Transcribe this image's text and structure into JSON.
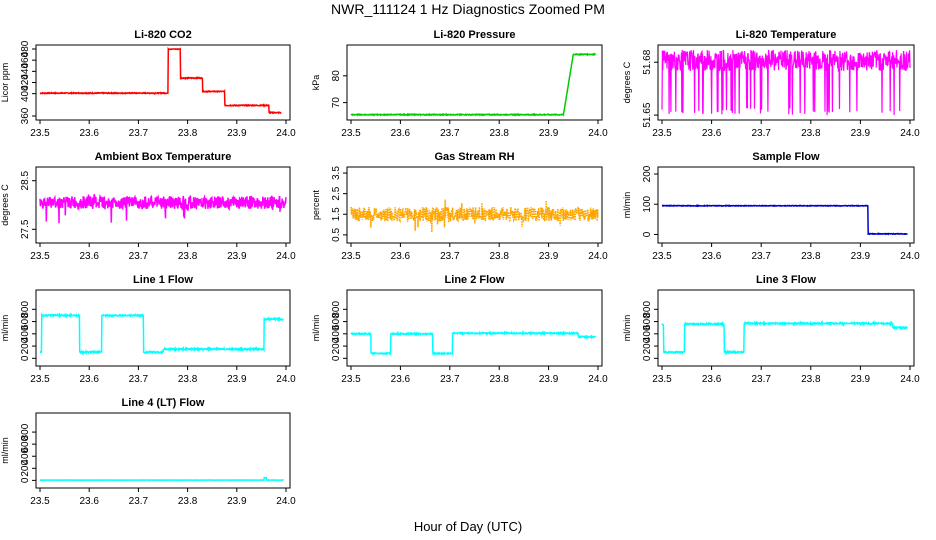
{
  "title": "NWR_111124  1 Hz Diagnostics Zoomed PM",
  "xlabel": "Hour of Day (UTC)",
  "chart_data": [
    {
      "type": "line",
      "title": "Li-820 CO2",
      "ylabel": "Licor ppm",
      "color": "#ff0000",
      "xlim": [
        23.5,
        24.0
      ],
      "ylim": [
        360,
        480
      ],
      "xticks": [
        23.5,
        23.6,
        23.7,
        23.8,
        23.9,
        24.0
      ],
      "yticks": [
        360,
        400,
        420,
        440,
        460,
        480
      ],
      "noise": 0.8,
      "segments": [
        [
          23.5,
          23.76,
          401
        ],
        [
          23.76,
          23.785,
          480
        ],
        [
          23.785,
          23.83,
          428
        ],
        [
          23.83,
          23.875,
          404
        ],
        [
          23.875,
          23.965,
          379
        ],
        [
          23.965,
          23.99,
          366
        ]
      ]
    },
    {
      "type": "line",
      "title": "Li-820 Pressure",
      "ylabel": "kPa",
      "color": "#00cc00",
      "xlim": [
        23.5,
        24.0
      ],
      "ylim": [
        65,
        90
      ],
      "xticks": [
        23.5,
        23.6,
        23.7,
        23.8,
        23.9,
        24.0
      ],
      "yticks": [
        70,
        80
      ],
      "noise": 0.15,
      "segments": [
        [
          23.5,
          23.93,
          65.5
        ],
        [
          23.93,
          23.95,
          "ramp",
          65.5,
          88
        ],
        [
          23.95,
          23.995,
          88
        ]
      ]
    },
    {
      "type": "line",
      "title": "Li-820 Temperature",
      "ylabel": "degrees C",
      "color": "#ff00ff",
      "xlim": [
        23.5,
        24.0
      ],
      "ylim": [
        51.6495,
        51.6875
      ],
      "xticks": [
        23.5,
        23.6,
        23.7,
        23.8,
        23.9,
        24.0
      ],
      "yticks": [
        51.65,
        51.68
      ],
      "noise": 0,
      "segments": [
        [
          23.5,
          24.0,
          51.68
        ]
      ],
      "style": "band",
      "band": [
        51.675,
        51.687
      ],
      "spike_to": 51.65
    },
    {
      "type": "line",
      "title": "Ambient Box Temperature",
      "ylabel": "degrees C",
      "color": "#ff00ff",
      "xlim": [
        23.5,
        24.0
      ],
      "ylim": [
        27.3,
        28.7
      ],
      "xticks": [
        23.5,
        23.6,
        23.7,
        23.8,
        23.9,
        24.0
      ],
      "yticks": [
        27.5,
        28.5
      ],
      "noise": 0.13,
      "segments": [
        [
          23.5,
          24.0,
          28.05
        ]
      ],
      "spikes": true
    },
    {
      "type": "line",
      "title": "Gas Stream RH",
      "ylabel": "percent",
      "color": "#ffa500",
      "xlim": [
        23.5,
        24.0
      ],
      "ylim": [
        0.3,
        3.6
      ],
      "xticks": [
        23.5,
        23.6,
        23.7,
        23.8,
        23.9,
        24.0
      ],
      "yticks": [
        0.5,
        1.5,
        2.5,
        3.5
      ],
      "noise": 0.35,
      "segments": [
        [
          23.5,
          24.0,
          1.5
        ]
      ],
      "spikes": true,
      "dashed": true
    },
    {
      "type": "line",
      "title": "Sample Flow",
      "ylabel": "ml/min",
      "color": "#0000cc",
      "xlim": [
        23.5,
        24.0
      ],
      "ylim": [
        -15,
        210
      ],
      "xticks": [
        23.5,
        23.6,
        23.7,
        23.8,
        23.9,
        24.0
      ],
      "yticks": [
        0,
        100,
        200
      ],
      "noise": 1,
      "segments": [
        [
          23.5,
          23.915,
          95
        ],
        [
          23.915,
          23.995,
          2
        ]
      ]
    },
    {
      "type": "line",
      "title": "Line 1 Flow",
      "ylabel": "ml/min",
      "color": "#00ffff",
      "xlim": [
        23.5,
        24.0
      ],
      "ylim": [
        -60,
        1050
      ],
      "xticks": [
        23.5,
        23.6,
        23.7,
        23.8,
        23.9,
        24.0
      ],
      "yticks": [
        0,
        200,
        400,
        600,
        800
      ],
      "noise": 12,
      "segments": [
        [
          23.5,
          23.503,
          100
        ],
        [
          23.503,
          23.58,
          700
        ],
        [
          23.58,
          23.625,
          100
        ],
        [
          23.625,
          23.71,
          700
        ],
        [
          23.71,
          23.75,
          100
        ],
        [
          23.75,
          23.955,
          150
        ],
        [
          23.955,
          23.995,
          640
        ]
      ]
    },
    {
      "type": "line",
      "title": "Line 2 Flow",
      "ylabel": "ml/min",
      "color": "#00ffff",
      "xlim": [
        23.5,
        24.0
      ],
      "ylim": [
        -60,
        1050
      ],
      "xticks": [
        23.5,
        23.6,
        23.7,
        23.8,
        23.9,
        24.0
      ],
      "yticks": [
        0,
        200,
        400,
        600,
        800
      ],
      "noise": 10,
      "segments": [
        [
          23.5,
          23.54,
          400
        ],
        [
          23.54,
          23.58,
          80
        ],
        [
          23.58,
          23.665,
          400
        ],
        [
          23.665,
          23.705,
          80
        ],
        [
          23.705,
          23.96,
          410
        ],
        [
          23.96,
          23.995,
          350
        ]
      ]
    },
    {
      "type": "line",
      "title": "Line 3 Flow",
      "ylabel": "ml/min",
      "color": "#00ffff",
      "xlim": [
        23.5,
        24.0
      ],
      "ylim": [
        -60,
        1050
      ],
      "xticks": [
        23.5,
        23.6,
        23.7,
        23.8,
        23.9,
        24.0
      ],
      "yticks": [
        0,
        200,
        400,
        600,
        800
      ],
      "noise": 12,
      "segments": [
        [
          23.5,
          23.503,
          550
        ],
        [
          23.503,
          23.545,
          100
        ],
        [
          23.545,
          23.625,
          560
        ],
        [
          23.625,
          23.665,
          100
        ],
        [
          23.665,
          23.965,
          570
        ],
        [
          23.965,
          23.995,
          500
        ]
      ]
    },
    {
      "type": "line",
      "title": "Line 4 (LT) Flow",
      "ylabel": "ml/min",
      "color": "#00ffff",
      "xlim": [
        23.5,
        24.0
      ],
      "ylim": [
        -60,
        1050
      ],
      "xticks": [
        23.5,
        23.6,
        23.7,
        23.8,
        23.9,
        24.0
      ],
      "yticks": [
        0,
        200,
        400,
        600,
        800
      ],
      "noise": 2,
      "segments": [
        [
          23.5,
          23.955,
          5
        ],
        [
          23.955,
          23.96,
          45
        ],
        [
          23.96,
          23.995,
          5
        ]
      ]
    }
  ]
}
